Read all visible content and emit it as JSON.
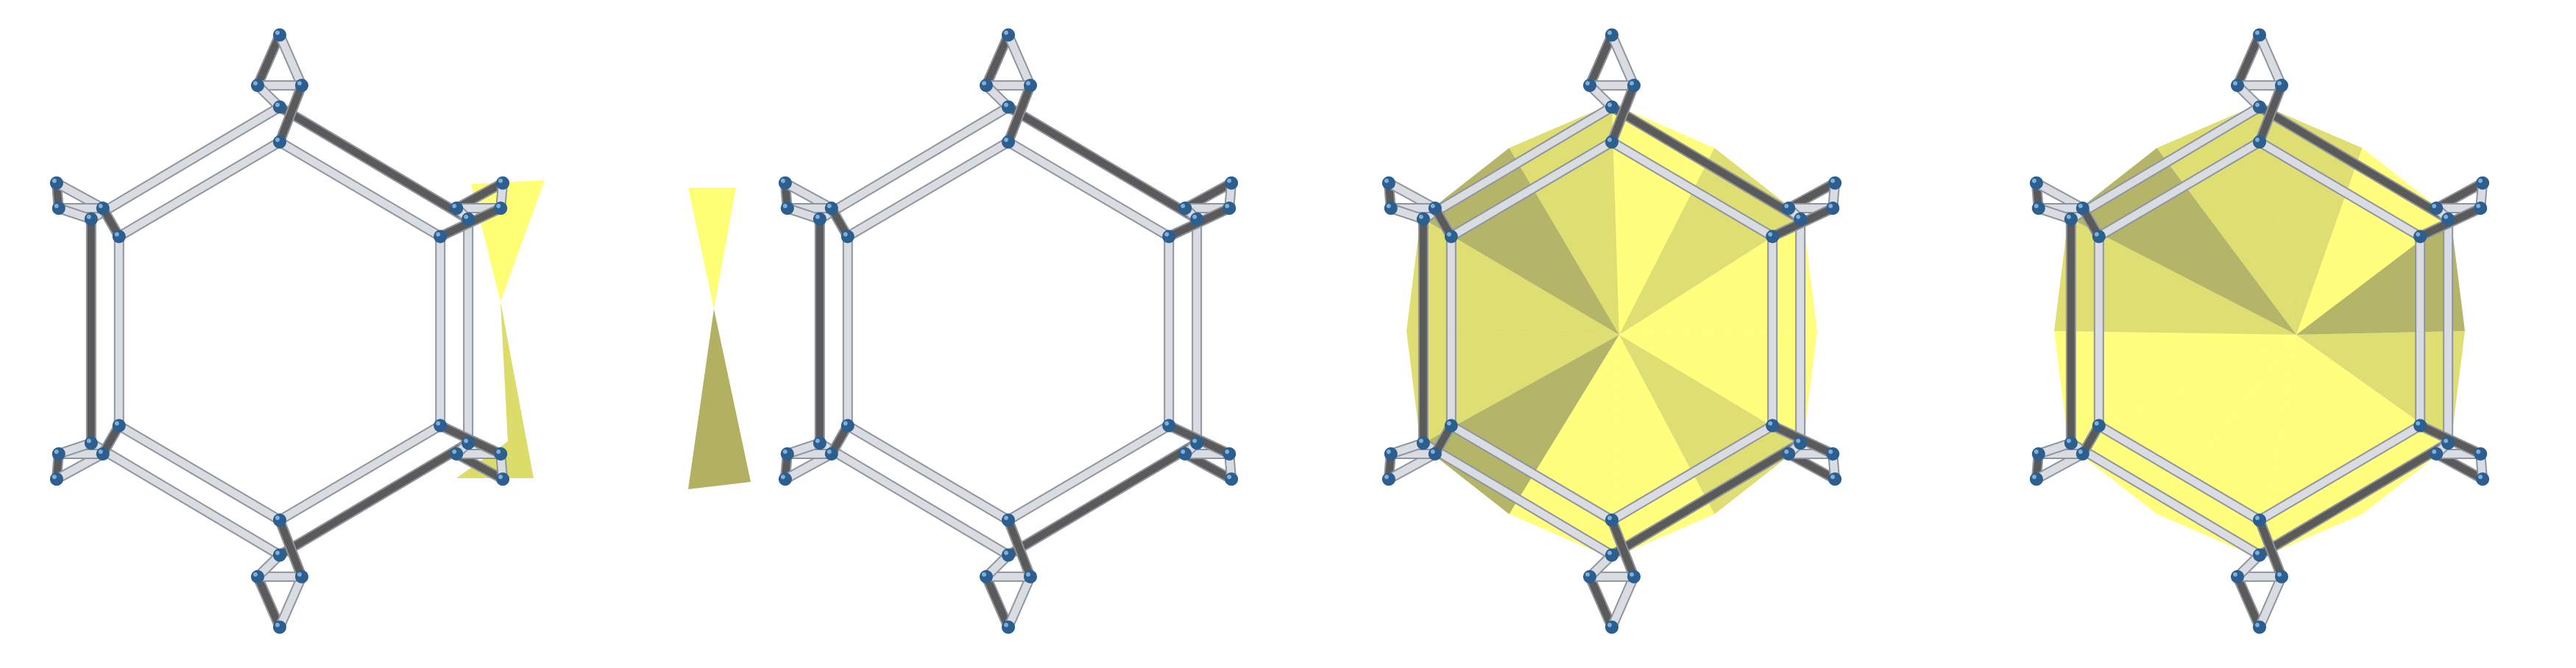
{
  "figure": {
    "panels": [
      {
        "id": "panel-1",
        "fill": "right-triangle-pair"
      },
      {
        "id": "panel-2",
        "fill": "left-triangle-pair"
      },
      {
        "id": "panel-3",
        "fill": "full-star-fan-a"
      },
      {
        "id": "panel-4",
        "fill": "full-star-fan-b"
      }
    ],
    "colors": {
      "background": "#ffffff",
      "rod_light": "#d9dde3",
      "rod_dark": "#5a5a5a",
      "rod_outline": "#8f959c",
      "node": "#2c5f8f",
      "node_highlight": "#7fb0d8",
      "fill_yellow": "#ffff66",
      "fill_yellow_shade": "#d8d85a",
      "fill_olive": "#a8a850"
    }
  }
}
